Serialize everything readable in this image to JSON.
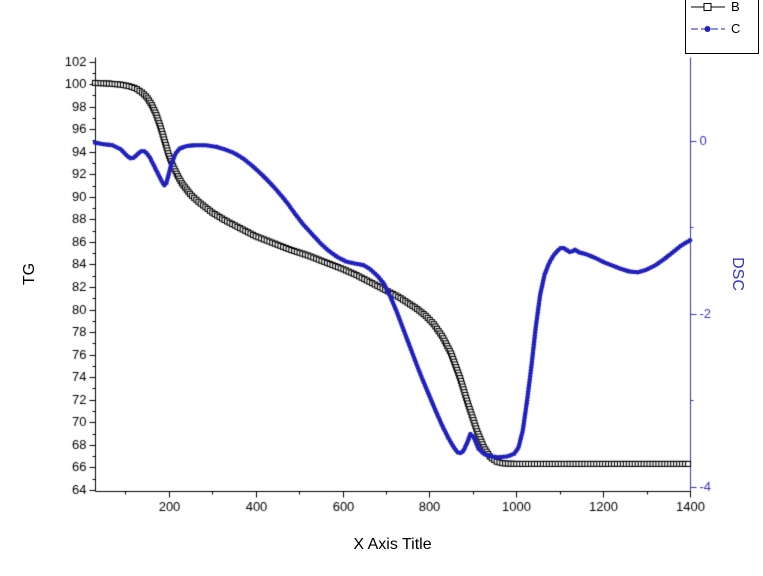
{
  "chart_data": {
    "type": "line",
    "title": "",
    "xlabel": "X Axis Title",
    "ylabel_left": "TG",
    "ylabel_right": "DSC",
    "xlim": [
      30,
      1400
    ],
    "ylim_left": [
      63.9,
      102.4
    ],
    "ylim_right": [
      -4.05,
      0.97
    ],
    "x_major_ticks": [
      200,
      400,
      600,
      800,
      1000,
      1200,
      1400
    ],
    "x_minor_ticks": [
      100,
      300,
      500,
      700,
      900,
      1100,
      1300
    ],
    "y_left_ticks": [
      64,
      66,
      68,
      70,
      72,
      74,
      76,
      78,
      80,
      82,
      84,
      86,
      88,
      90,
      92,
      94,
      96,
      98,
      100,
      102
    ],
    "y_left_minor_ticks": [
      65,
      67,
      69,
      71,
      73,
      75,
      77,
      79,
      81,
      83,
      85,
      87,
      89,
      91,
      93,
      95,
      97,
      99,
      101
    ],
    "y_right_major_ticks": [
      0,
      -2,
      -4
    ],
    "y_right_minor_ticks": [
      -1,
      -3
    ],
    "grid": false,
    "legend_position": "top-right (partially cut off at image top)",
    "colors": {
      "left_axis": "#000000",
      "right_axis": "#3333cc"
    },
    "legend": [
      {
        "label": "B",
        "marker": "open-square",
        "color": "#000000"
      },
      {
        "label": "C",
        "marker": "filled-circle",
        "color": "#2020c0"
      }
    ],
    "series": [
      {
        "name": "B",
        "axis": "left",
        "marker": "open-square",
        "color": "#000000",
        "points": [
          [
            30,
            100.1
          ],
          [
            60,
            100.05
          ],
          [
            90,
            99.95
          ],
          [
            110,
            99.8
          ],
          [
            125,
            99.6
          ],
          [
            140,
            99.2
          ],
          [
            150,
            98.8
          ],
          [
            160,
            98.2
          ],
          [
            170,
            97.4
          ],
          [
            180,
            96.3
          ],
          [
            190,
            95.0
          ],
          [
            200,
            93.7
          ],
          [
            210,
            92.7
          ],
          [
            220,
            91.9
          ],
          [
            230,
            91.2
          ],
          [
            240,
            90.7
          ],
          [
            250,
            90.2
          ],
          [
            270,
            89.5
          ],
          [
            300,
            88.6
          ],
          [
            330,
            87.9
          ],
          [
            360,
            87.3
          ],
          [
            400,
            86.5
          ],
          [
            440,
            85.9
          ],
          [
            480,
            85.3
          ],
          [
            520,
            84.8
          ],
          [
            560,
            84.2
          ],
          [
            600,
            83.6
          ],
          [
            630,
            83.1
          ],
          [
            660,
            82.5
          ],
          [
            690,
            81.9
          ],
          [
            710,
            81.5
          ],
          [
            730,
            81.1
          ],
          [
            750,
            80.6
          ],
          [
            770,
            80.1
          ],
          [
            790,
            79.5
          ],
          [
            810,
            78.7
          ],
          [
            830,
            77.6
          ],
          [
            850,
            76.1
          ],
          [
            870,
            74.0
          ],
          [
            890,
            71.5
          ],
          [
            910,
            69.2
          ],
          [
            925,
            67.8
          ],
          [
            940,
            66.9
          ],
          [
            955,
            66.5
          ],
          [
            970,
            66.35
          ],
          [
            1000,
            66.3
          ],
          [
            1100,
            66.3
          ],
          [
            1200,
            66.3
          ],
          [
            1300,
            66.3
          ],
          [
            1400,
            66.3
          ]
        ]
      },
      {
        "name": "C",
        "axis": "right",
        "marker": "filled-circle",
        "color": "#2020c0",
        "points": [
          [
            30,
            -0.02
          ],
          [
            50,
            -0.04
          ],
          [
            70,
            -0.05
          ],
          [
            90,
            -0.1
          ],
          [
            105,
            -0.18
          ],
          [
            115,
            -0.21
          ],
          [
            125,
            -0.17
          ],
          [
            135,
            -0.12
          ],
          [
            145,
            -0.12
          ],
          [
            155,
            -0.18
          ],
          [
            165,
            -0.28
          ],
          [
            175,
            -0.38
          ],
          [
            185,
            -0.48
          ],
          [
            192,
            -0.53
          ],
          [
            198,
            -0.42
          ],
          [
            205,
            -0.28
          ],
          [
            215,
            -0.15
          ],
          [
            225,
            -0.09
          ],
          [
            240,
            -0.06
          ],
          [
            260,
            -0.05
          ],
          [
            285,
            -0.05
          ],
          [
            310,
            -0.07
          ],
          [
            330,
            -0.1
          ],
          [
            350,
            -0.14
          ],
          [
            370,
            -0.2
          ],
          [
            390,
            -0.28
          ],
          [
            410,
            -0.37
          ],
          [
            430,
            -0.47
          ],
          [
            450,
            -0.58
          ],
          [
            470,
            -0.7
          ],
          [
            490,
            -0.84
          ],
          [
            510,
            -0.97
          ],
          [
            530,
            -1.08
          ],
          [
            550,
            -1.19
          ],
          [
            570,
            -1.28
          ],
          [
            590,
            -1.35
          ],
          [
            610,
            -1.4
          ],
          [
            630,
            -1.42
          ],
          [
            650,
            -1.44
          ],
          [
            665,
            -1.49
          ],
          [
            680,
            -1.56
          ],
          [
            695,
            -1.65
          ],
          [
            710,
            -1.8
          ],
          [
            725,
            -1.98
          ],
          [
            740,
            -2.18
          ],
          [
            755,
            -2.38
          ],
          [
            770,
            -2.58
          ],
          [
            785,
            -2.77
          ],
          [
            800,
            -2.95
          ],
          [
            815,
            -3.13
          ],
          [
            830,
            -3.3
          ],
          [
            845,
            -3.45
          ],
          [
            858,
            -3.56
          ],
          [
            868,
            -3.62
          ],
          [
            878,
            -3.59
          ],
          [
            888,
            -3.48
          ],
          [
            895,
            -3.38
          ],
          [
            903,
            -3.44
          ],
          [
            913,
            -3.56
          ],
          [
            925,
            -3.62
          ],
          [
            940,
            -3.65
          ],
          [
            960,
            -3.66
          ],
          [
            980,
            -3.65
          ],
          [
            995,
            -3.62
          ],
          [
            1005,
            -3.55
          ],
          [
            1015,
            -3.35
          ],
          [
            1025,
            -3.0
          ],
          [
            1035,
            -2.6
          ],
          [
            1045,
            -2.15
          ],
          [
            1055,
            -1.78
          ],
          [
            1065,
            -1.55
          ],
          [
            1075,
            -1.42
          ],
          [
            1085,
            -1.33
          ],
          [
            1095,
            -1.27
          ],
          [
            1105,
            -1.23
          ],
          [
            1115,
            -1.26
          ],
          [
            1125,
            -1.29
          ],
          [
            1135,
            -1.26
          ],
          [
            1145,
            -1.29
          ],
          [
            1160,
            -1.31
          ],
          [
            1180,
            -1.35
          ],
          [
            1200,
            -1.4
          ],
          [
            1220,
            -1.44
          ],
          [
            1240,
            -1.48
          ],
          [
            1260,
            -1.51
          ],
          [
            1280,
            -1.52
          ],
          [
            1300,
            -1.49
          ],
          [
            1320,
            -1.44
          ],
          [
            1340,
            -1.37
          ],
          [
            1360,
            -1.29
          ],
          [
            1380,
            -1.21
          ],
          [
            1400,
            -1.15
          ]
        ]
      }
    ]
  }
}
